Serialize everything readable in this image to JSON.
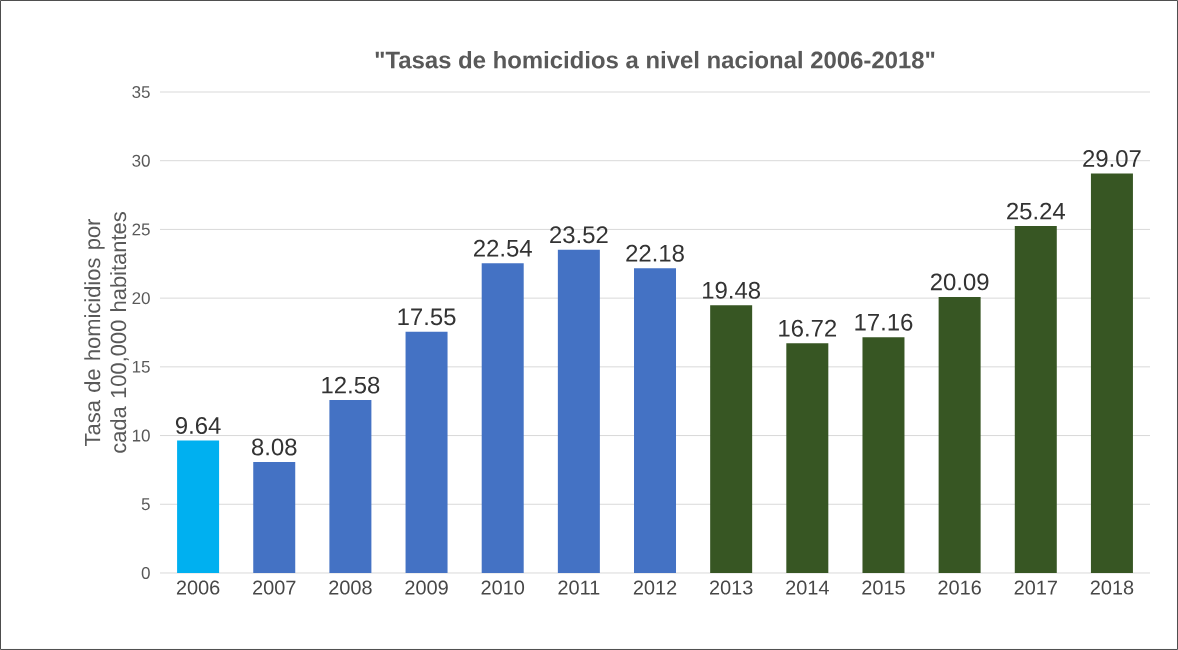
{
  "chart_data": {
    "type": "bar",
    "title": "\"Tasas de homicidios a nivel nacional 2006-2018\"",
    "ylabel": "Tasa de homicidios por cada 100,000 habitantes",
    "categories": [
      "2006",
      "2007",
      "2008",
      "2009",
      "2010",
      "2011",
      "2012",
      "2013",
      "2014",
      "2015",
      "2016",
      "2017",
      "2018"
    ],
    "values": [
      9.64,
      8.08,
      12.58,
      17.55,
      22.54,
      23.52,
      22.18,
      19.48,
      16.72,
      17.16,
      20.09,
      25.24,
      29.07
    ],
    "colors": [
      "#00b0f0",
      "#4472c4",
      "#4472c4",
      "#4472c4",
      "#4472c4",
      "#4472c4",
      "#4472c4",
      "#375623",
      "#375623",
      "#375623",
      "#375623",
      "#375623",
      "#375623"
    ],
    "ylim": [
      0,
      35
    ],
    "yticks": [
      0,
      5,
      10,
      15,
      20,
      25,
      30,
      35
    ],
    "grid": "y",
    "data_labels": true
  }
}
